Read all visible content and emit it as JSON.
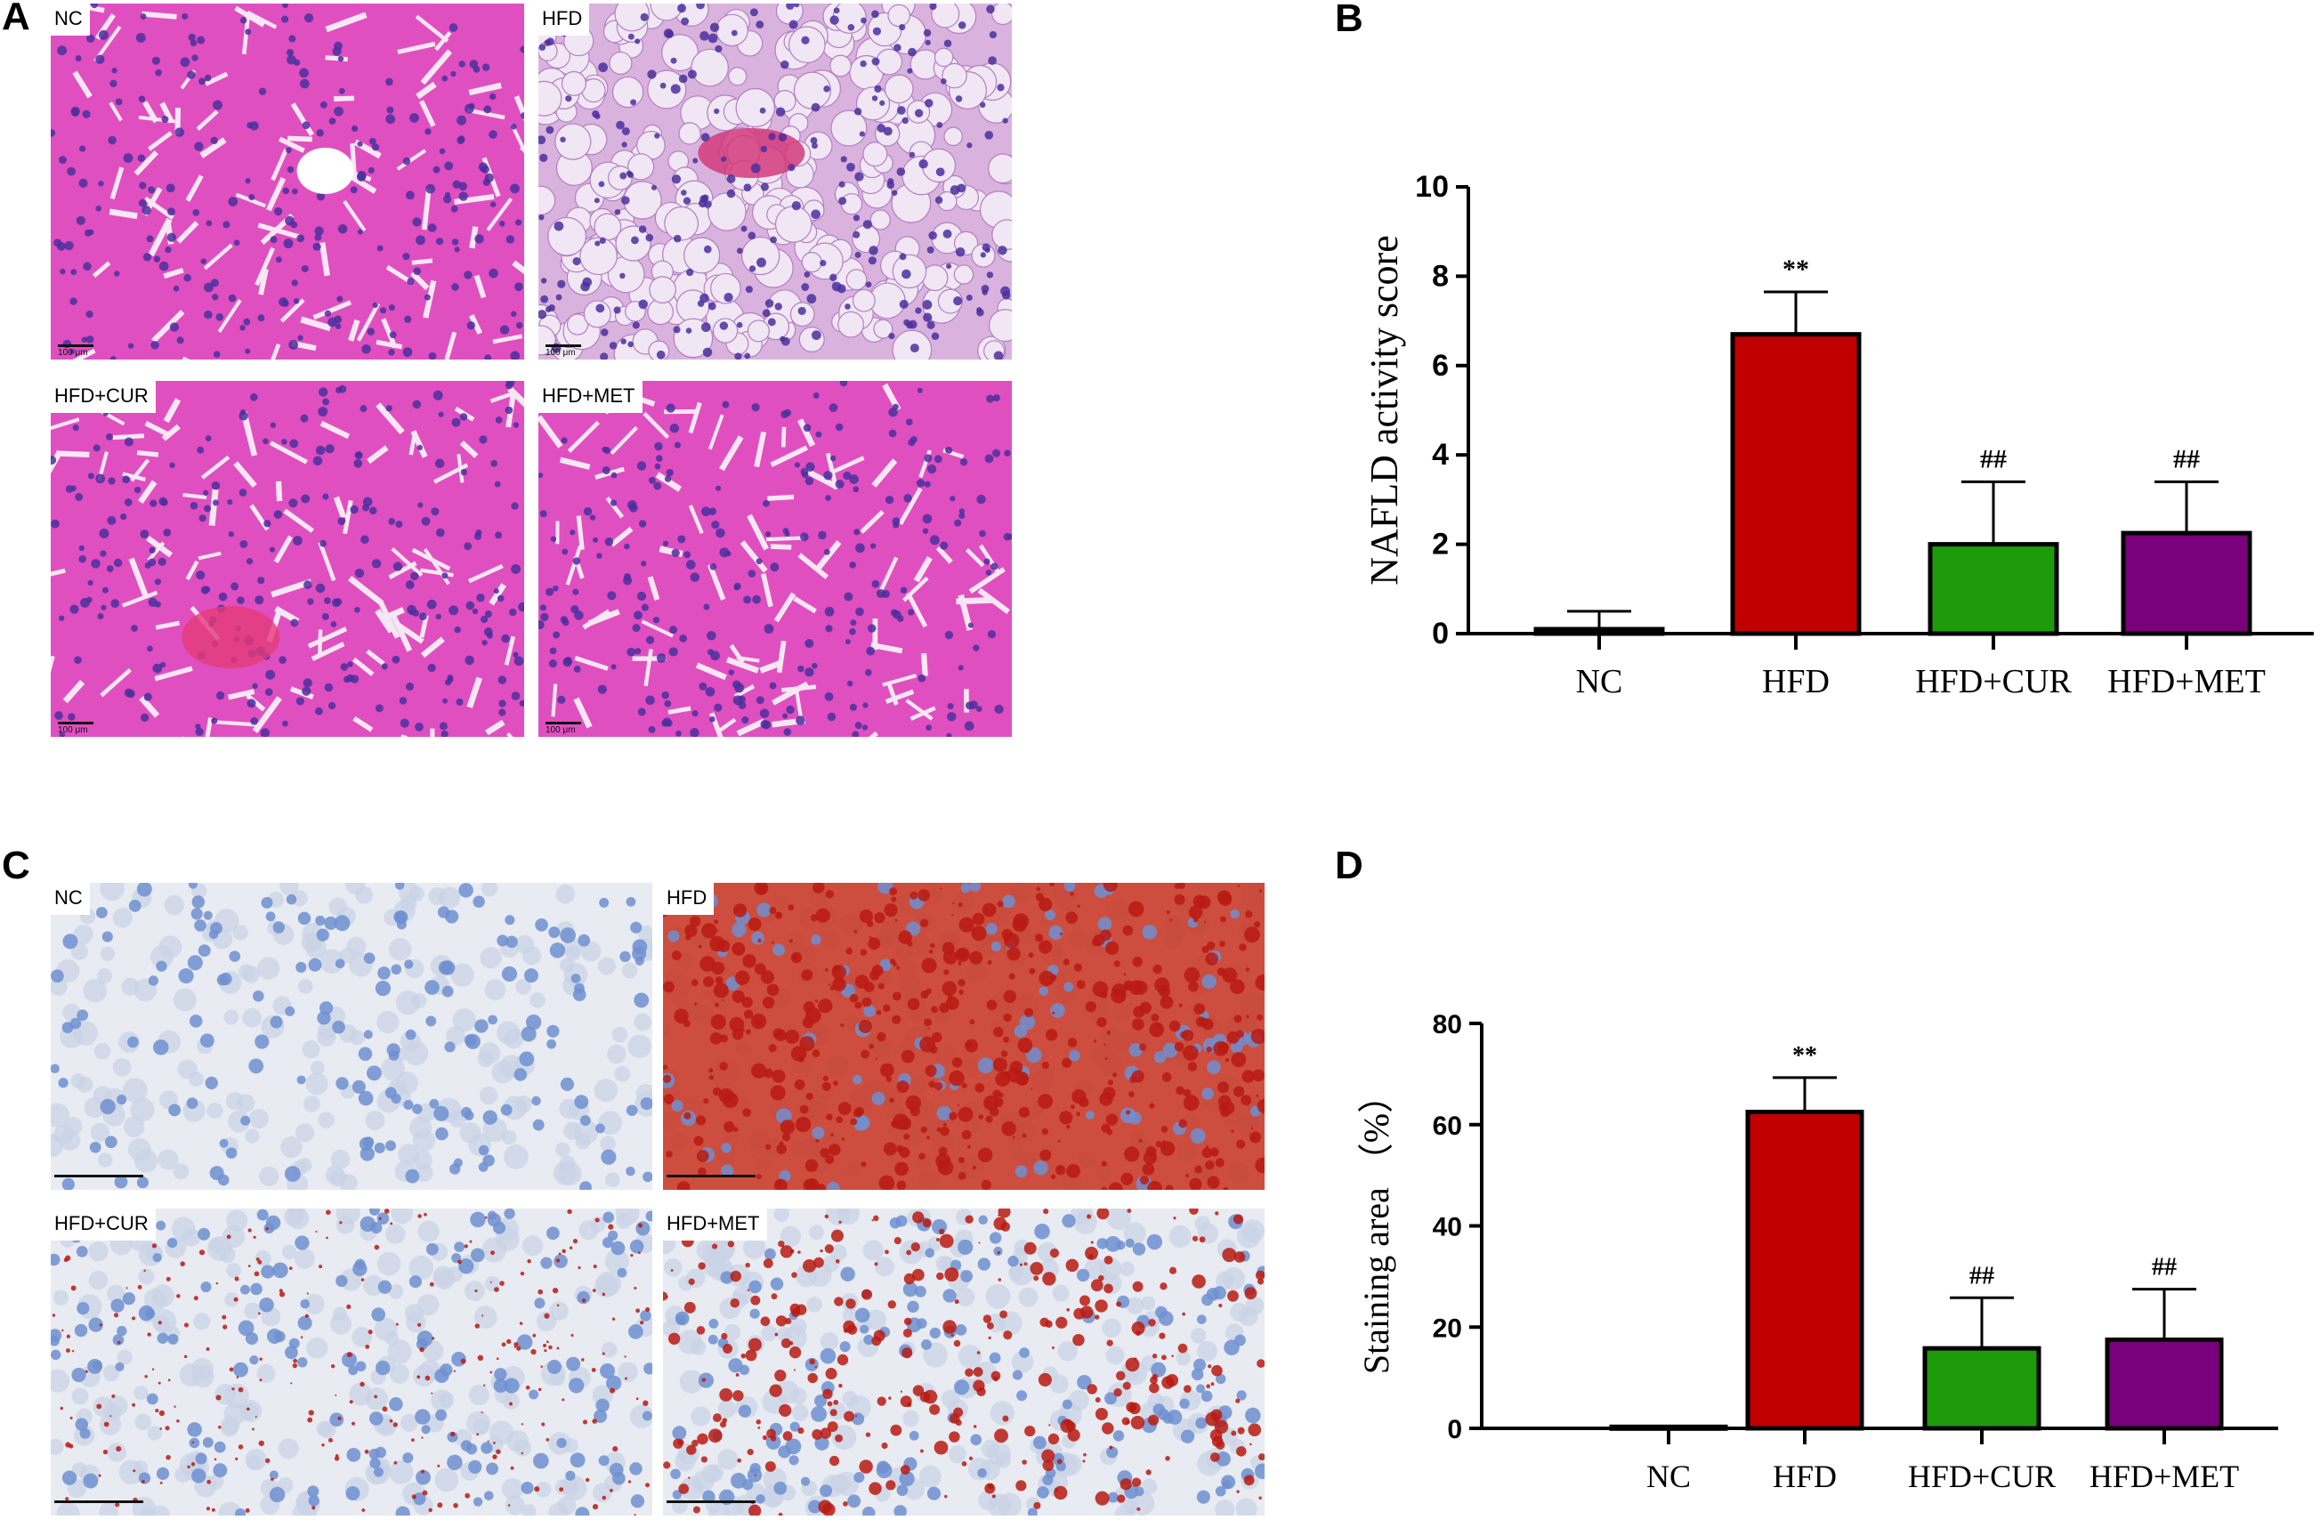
{
  "panels": {
    "A": {
      "letter": "A",
      "images": [
        {
          "label": "NC",
          "stain": "he_normal",
          "scale_text": "100 μm"
        },
        {
          "label": "HFD",
          "stain": "he_fatty",
          "scale_text": "100 μm"
        },
        {
          "label": "HFD+CUR",
          "stain": "he_normal",
          "scale_text": "100 μm"
        },
        {
          "label": "HFD+MET",
          "stain": "he_normal",
          "scale_text": "100 μm"
        }
      ]
    },
    "B": {
      "letter": "B"
    },
    "C": {
      "letter": "C",
      "images": [
        {
          "label": "NC",
          "stain": "oro_none"
        },
        {
          "label": "HFD",
          "stain": "oro_heavy"
        },
        {
          "label": "HFD+CUR",
          "stain": "oro_light"
        },
        {
          "label": "HFD+MET",
          "stain": "oro_droplets"
        }
      ]
    },
    "D": {
      "letter": "D"
    }
  },
  "colors": {
    "he_pink": "#e04fbf",
    "he_nucleus": "#4a2f9e",
    "oro_blue": "#6f8fd0",
    "oro_red": "#c8321e",
    "bar_nc": "#ffffff",
    "bar_hfd": "#c00000",
    "bar_cur": "#1e9b0b",
    "bar_met": "#7b007b"
  },
  "chart_data": [
    {
      "panel": "B",
      "type": "bar",
      "categories": [
        "NC",
        "HFD",
        "HFD+CUR",
        "HFD+MET"
      ],
      "values": [
        0.1,
        6.7,
        2.0,
        2.25
      ],
      "errors": [
        0.4,
        0.95,
        1.4,
        1.15
      ],
      "annotations": [
        "",
        "**",
        "##",
        "##"
      ],
      "ylabel": "NAFLD activity score",
      "xlabel": "",
      "ylim": [
        0,
        10
      ],
      "yticks": [
        "0",
        "2",
        "4",
        "6",
        "8",
        "10"
      ],
      "grid": false
    },
    {
      "panel": "D",
      "type": "bar",
      "categories": [
        "NC",
        "HFD",
        "HFD+CUR",
        "HFD+MET"
      ],
      "values": [
        0.3,
        62.5,
        15.8,
        17.5
      ],
      "errors": [
        0,
        6.8,
        10.0,
        10.0
      ],
      "annotations": [
        "",
        "**",
        "##",
        "##"
      ],
      "ylabel": "Staining area （%）",
      "xlabel": "",
      "ylim": [
        0,
        80
      ],
      "yticks": [
        "0",
        "20",
        "40",
        "60",
        "80"
      ],
      "grid": false
    }
  ]
}
